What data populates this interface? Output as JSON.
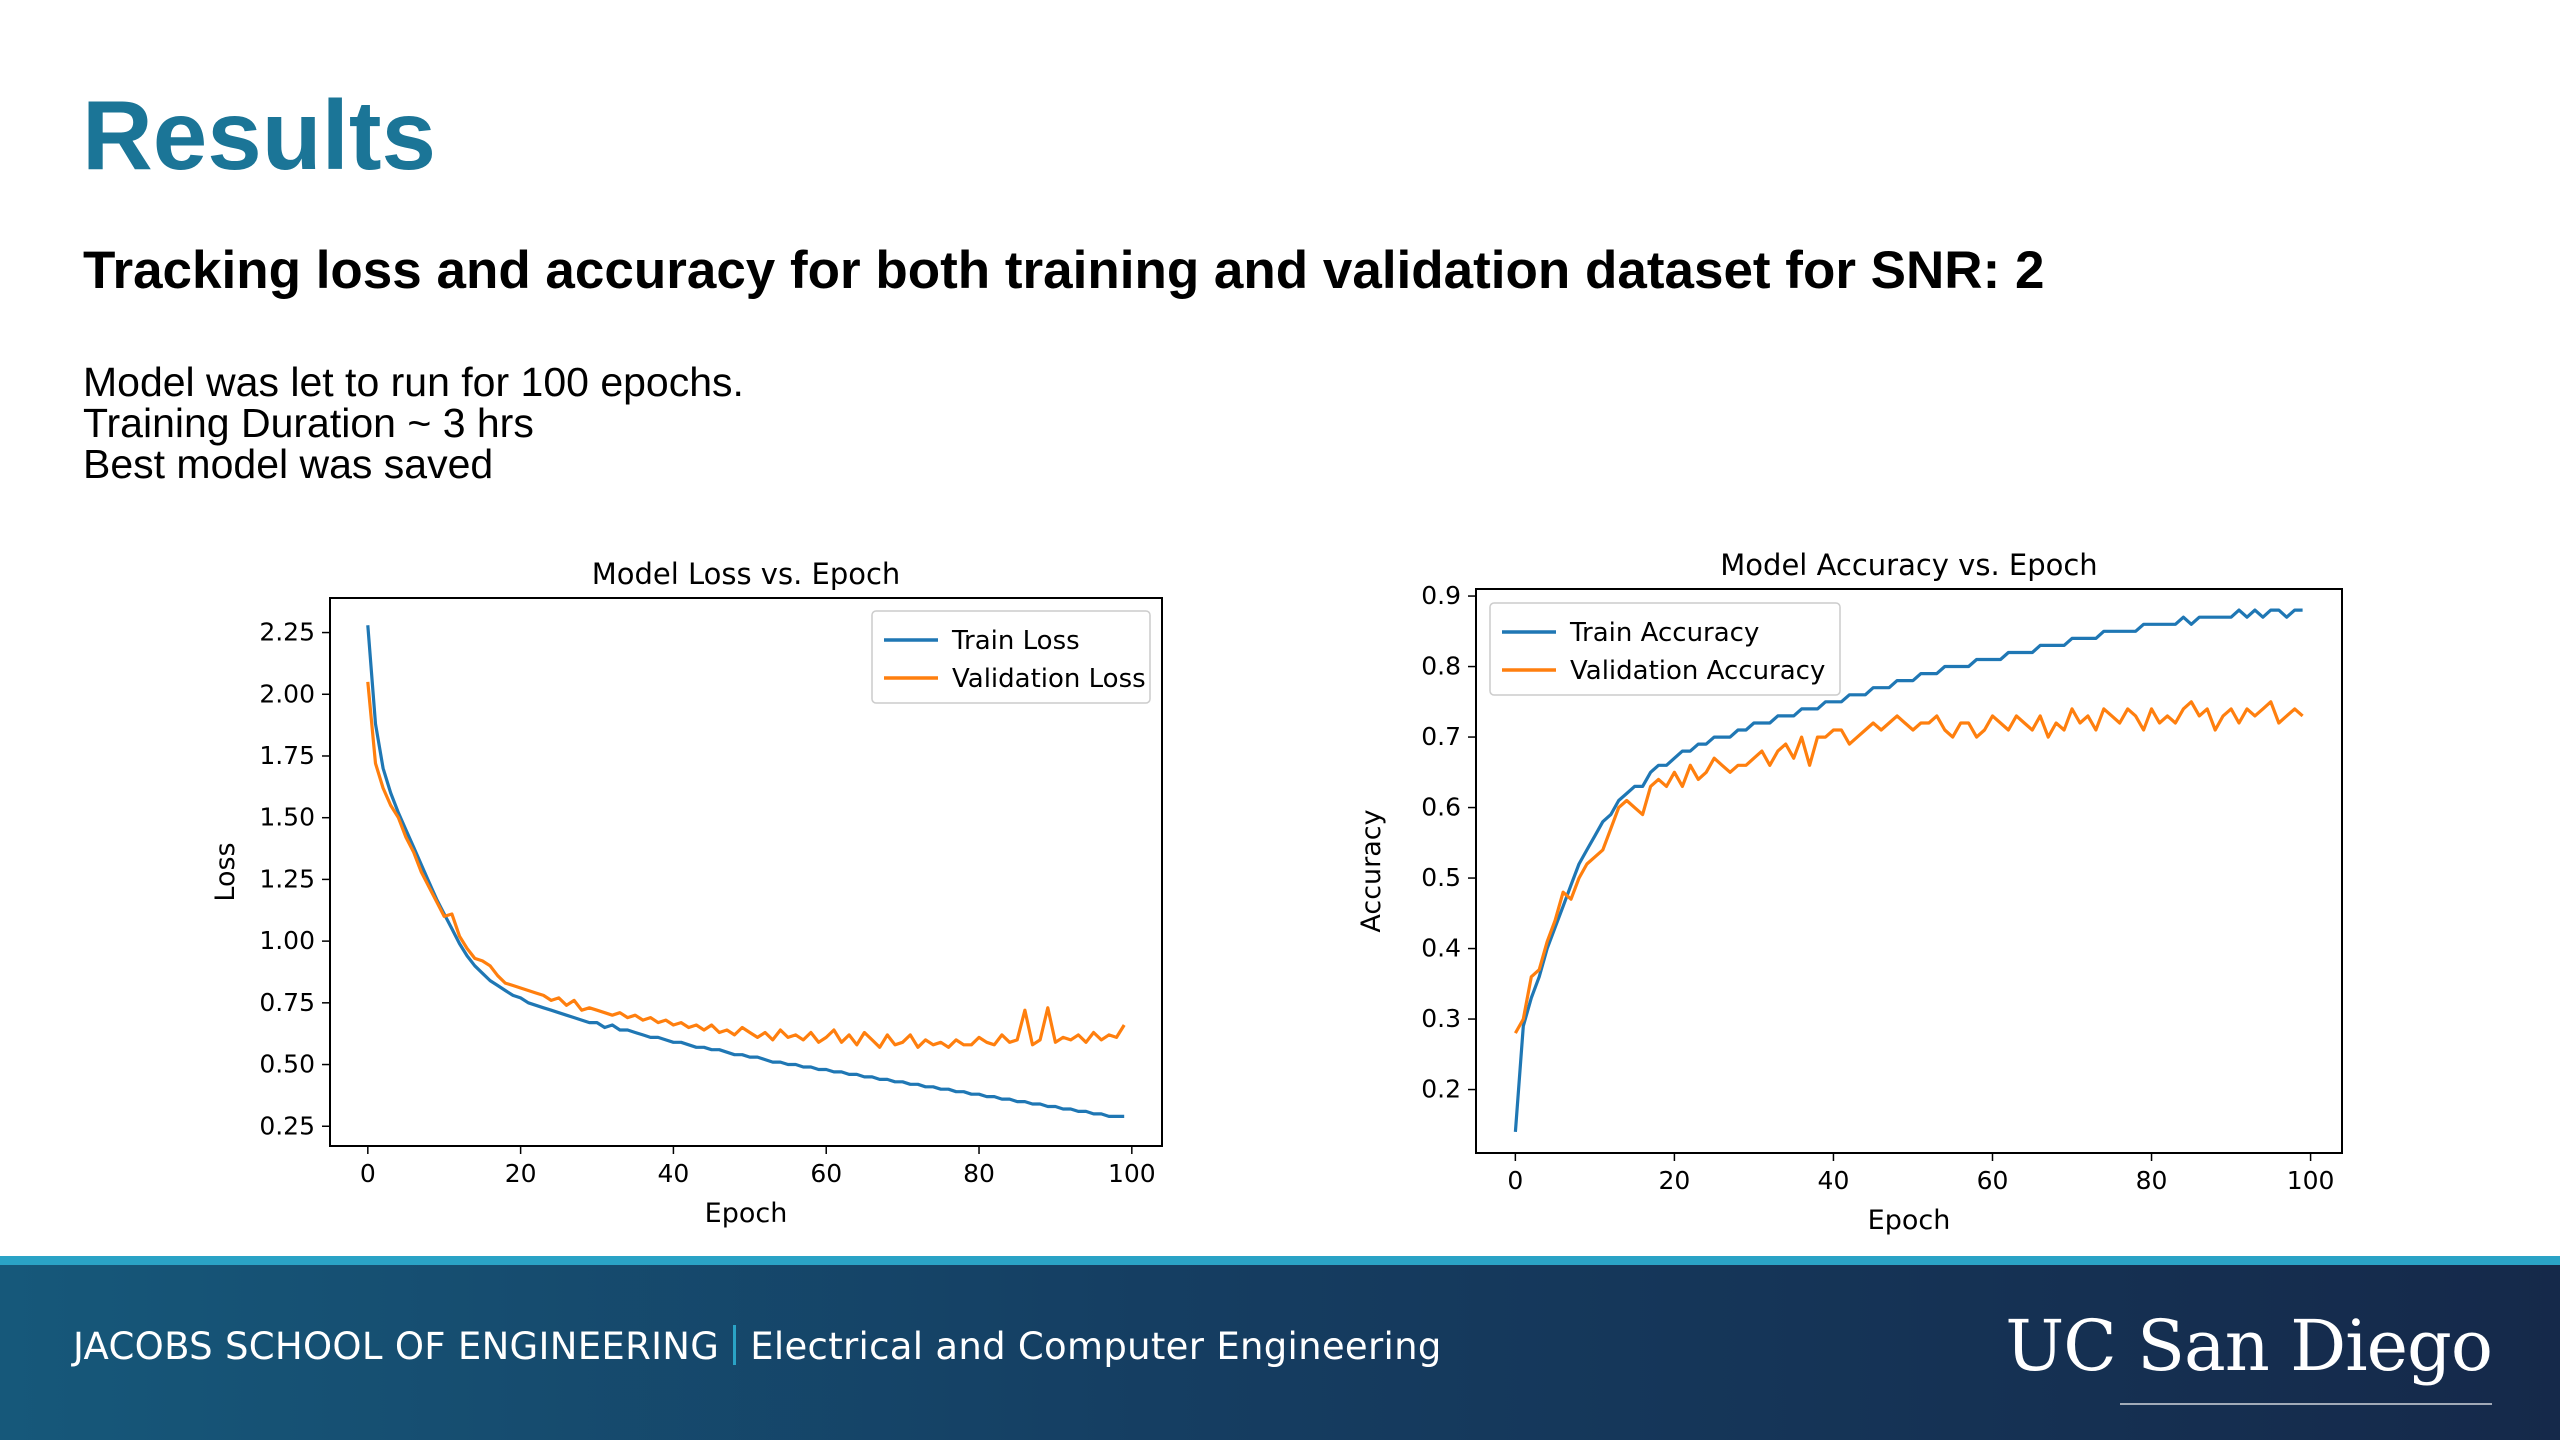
{
  "slide": {
    "title": "Results",
    "subtitle": "Tracking loss and accuracy for both training and validation dataset for SNR: 2",
    "body_lines": [
      "Model was let to run for 100 epochs.",
      "Training Duration ~ 3 hrs",
      "Best model was saved"
    ]
  },
  "footer": {
    "school": "JACOBS SCHOOL OF ENGINEERING",
    "department": "Electrical and Computer Engineering",
    "logo_text": "UC San Diego"
  },
  "colors": {
    "title": "#1b7597",
    "train_series": "#1f77b4",
    "validation_series": "#ff7f0e",
    "footer_accent": "#2aa3c6"
  },
  "chart_data": [
    {
      "type": "line",
      "title": "Model Loss vs. Epoch",
      "xlabel": "Epoch",
      "ylabel": "Loss",
      "xlim": [
        -4.95,
        103.95
      ],
      "ylim": [
        0.17,
        2.39
      ],
      "xticks": [
        0,
        20,
        40,
        60,
        80,
        100
      ],
      "yticks": [
        0.25,
        0.5,
        0.75,
        1.0,
        1.25,
        1.5,
        1.75,
        2.0,
        2.25
      ],
      "ytick_labels": [
        "0.25",
        "0.50",
        "0.75",
        "1.00",
        "1.25",
        "1.50",
        "1.75",
        "2.00",
        "2.25"
      ],
      "legend_position": "top-right",
      "series": [
        {
          "name": "Train Loss",
          "color": "#1f77b4",
          "x": [
            0,
            1,
            2,
            3,
            4,
            5,
            6,
            7,
            8,
            9,
            10,
            11,
            12,
            13,
            14,
            15,
            16,
            17,
            18,
            19,
            20,
            21,
            22,
            23,
            24,
            25,
            26,
            27,
            28,
            29,
            30,
            31,
            32,
            33,
            34,
            35,
            36,
            37,
            38,
            39,
            40,
            41,
            42,
            43,
            44,
            45,
            46,
            47,
            48,
            49,
            50,
            51,
            52,
            53,
            54,
            55,
            56,
            57,
            58,
            59,
            60,
            61,
            62,
            63,
            64,
            65,
            66,
            67,
            68,
            69,
            70,
            71,
            72,
            73,
            74,
            75,
            76,
            77,
            78,
            79,
            80,
            81,
            82,
            83,
            84,
            85,
            86,
            87,
            88,
            89,
            90,
            91,
            92,
            93,
            94,
            95,
            96,
            97,
            98,
            99
          ],
          "y": [
            2.28,
            1.88,
            1.7,
            1.6,
            1.52,
            1.45,
            1.38,
            1.31,
            1.24,
            1.17,
            1.11,
            1.05,
            0.99,
            0.94,
            0.9,
            0.87,
            0.84,
            0.82,
            0.8,
            0.78,
            0.77,
            0.75,
            0.74,
            0.73,
            0.72,
            0.71,
            0.7,
            0.69,
            0.68,
            0.67,
            0.67,
            0.65,
            0.66,
            0.64,
            0.64,
            0.63,
            0.62,
            0.61,
            0.61,
            0.6,
            0.59,
            0.59,
            0.58,
            0.57,
            0.57,
            0.56,
            0.56,
            0.55,
            0.54,
            0.54,
            0.53,
            0.53,
            0.52,
            0.51,
            0.51,
            0.5,
            0.5,
            0.49,
            0.49,
            0.48,
            0.48,
            0.47,
            0.47,
            0.46,
            0.46,
            0.45,
            0.45,
            0.44,
            0.44,
            0.43,
            0.43,
            0.42,
            0.42,
            0.41,
            0.41,
            0.4,
            0.4,
            0.39,
            0.39,
            0.38,
            0.38,
            0.37,
            0.37,
            0.36,
            0.36,
            0.35,
            0.35,
            0.34,
            0.34,
            0.33,
            0.33,
            0.32,
            0.32,
            0.31,
            0.31,
            0.3,
            0.3,
            0.29,
            0.29,
            0.29
          ]
        },
        {
          "name": "Validation Loss",
          "color": "#ff7f0e",
          "x": [
            0,
            1,
            2,
            3,
            4,
            5,
            6,
            7,
            8,
            9,
            10,
            11,
            12,
            13,
            14,
            15,
            16,
            17,
            18,
            19,
            20,
            21,
            22,
            23,
            24,
            25,
            26,
            27,
            28,
            29,
            30,
            31,
            32,
            33,
            34,
            35,
            36,
            37,
            38,
            39,
            40,
            41,
            42,
            43,
            44,
            45,
            46,
            47,
            48,
            49,
            50,
            51,
            52,
            53,
            54,
            55,
            56,
            57,
            58,
            59,
            60,
            61,
            62,
            63,
            64,
            65,
            66,
            67,
            68,
            69,
            70,
            71,
            72,
            73,
            74,
            75,
            76,
            77,
            78,
            79,
            80,
            81,
            82,
            83,
            84,
            85,
            86,
            87,
            88,
            89,
            90,
            91,
            92,
            93,
            94,
            95,
            96,
            97,
            98,
            99
          ],
          "y": [
            2.05,
            1.72,
            1.62,
            1.55,
            1.5,
            1.42,
            1.36,
            1.28,
            1.22,
            1.16,
            1.1,
            1.11,
            1.02,
            0.97,
            0.93,
            0.92,
            0.9,
            0.86,
            0.83,
            0.82,
            0.81,
            0.8,
            0.79,
            0.78,
            0.76,
            0.77,
            0.74,
            0.76,
            0.72,
            0.73,
            0.72,
            0.71,
            0.7,
            0.71,
            0.69,
            0.7,
            0.68,
            0.69,
            0.67,
            0.68,
            0.66,
            0.67,
            0.65,
            0.66,
            0.64,
            0.66,
            0.63,
            0.64,
            0.62,
            0.65,
            0.63,
            0.61,
            0.63,
            0.6,
            0.64,
            0.61,
            0.62,
            0.6,
            0.63,
            0.59,
            0.61,
            0.64,
            0.59,
            0.62,
            0.58,
            0.63,
            0.6,
            0.57,
            0.62,
            0.58,
            0.59,
            0.62,
            0.57,
            0.6,
            0.58,
            0.59,
            0.57,
            0.6,
            0.58,
            0.58,
            0.61,
            0.59,
            0.58,
            0.62,
            0.59,
            0.6,
            0.72,
            0.58,
            0.6,
            0.73,
            0.59,
            0.61,
            0.6,
            0.62,
            0.59,
            0.63,
            0.6,
            0.62,
            0.61,
            0.66
          ]
        }
      ]
    },
    {
      "type": "line",
      "title": "Model Accuracy vs. Epoch",
      "xlabel": "Epoch",
      "ylabel": "Accuracy",
      "xlim": [
        -4.95,
        103.95
      ],
      "ylim": [
        0.11,
        0.91
      ],
      "xticks": [
        0,
        20,
        40,
        60,
        80,
        100
      ],
      "yticks": [
        0.2,
        0.3,
        0.4,
        0.5,
        0.6,
        0.7,
        0.8,
        0.9
      ],
      "ytick_labels": [
        "0.2",
        "0.3",
        "0.4",
        "0.5",
        "0.6",
        "0.7",
        "0.8",
        "0.9"
      ],
      "legend_position": "top-left",
      "series": [
        {
          "name": "Train Accuracy",
          "color": "#1f77b4",
          "x": [
            0,
            1,
            2,
            3,
            4,
            5,
            6,
            7,
            8,
            9,
            10,
            11,
            12,
            13,
            14,
            15,
            16,
            17,
            18,
            19,
            20,
            21,
            22,
            23,
            24,
            25,
            26,
            27,
            28,
            29,
            30,
            31,
            32,
            33,
            34,
            35,
            36,
            37,
            38,
            39,
            40,
            41,
            42,
            43,
            44,
            45,
            46,
            47,
            48,
            49,
            50,
            51,
            52,
            53,
            54,
            55,
            56,
            57,
            58,
            59,
            60,
            61,
            62,
            63,
            64,
            65,
            66,
            67,
            68,
            69,
            70,
            71,
            72,
            73,
            74,
            75,
            76,
            77,
            78,
            79,
            80,
            81,
            82,
            83,
            84,
            85,
            86,
            87,
            88,
            89,
            90,
            91,
            92,
            93,
            94,
            95,
            96,
            97,
            98,
            99
          ],
          "y": [
            0.14,
            0.29,
            0.33,
            0.36,
            0.4,
            0.43,
            0.46,
            0.49,
            0.52,
            0.54,
            0.56,
            0.58,
            0.59,
            0.61,
            0.62,
            0.63,
            0.63,
            0.65,
            0.66,
            0.66,
            0.67,
            0.68,
            0.68,
            0.69,
            0.69,
            0.7,
            0.7,
            0.7,
            0.71,
            0.71,
            0.72,
            0.72,
            0.72,
            0.73,
            0.73,
            0.73,
            0.74,
            0.74,
            0.74,
            0.75,
            0.75,
            0.75,
            0.76,
            0.76,
            0.76,
            0.77,
            0.77,
            0.77,
            0.78,
            0.78,
            0.78,
            0.79,
            0.79,
            0.79,
            0.8,
            0.8,
            0.8,
            0.8,
            0.81,
            0.81,
            0.81,
            0.81,
            0.82,
            0.82,
            0.82,
            0.82,
            0.83,
            0.83,
            0.83,
            0.83,
            0.84,
            0.84,
            0.84,
            0.84,
            0.85,
            0.85,
            0.85,
            0.85,
            0.85,
            0.86,
            0.86,
            0.86,
            0.86,
            0.86,
            0.87,
            0.86,
            0.87,
            0.87,
            0.87,
            0.87,
            0.87,
            0.88,
            0.87,
            0.88,
            0.87,
            0.88,
            0.88,
            0.87,
            0.88,
            0.88
          ]
        },
        {
          "name": "Validation Accuracy",
          "color": "#ff7f0e",
          "x": [
            0,
            1,
            2,
            3,
            4,
            5,
            6,
            7,
            8,
            9,
            10,
            11,
            12,
            13,
            14,
            15,
            16,
            17,
            18,
            19,
            20,
            21,
            22,
            23,
            24,
            25,
            26,
            27,
            28,
            29,
            30,
            31,
            32,
            33,
            34,
            35,
            36,
            37,
            38,
            39,
            40,
            41,
            42,
            43,
            44,
            45,
            46,
            47,
            48,
            49,
            50,
            51,
            52,
            53,
            54,
            55,
            56,
            57,
            58,
            59,
            60,
            61,
            62,
            63,
            64,
            65,
            66,
            67,
            68,
            69,
            70,
            71,
            72,
            73,
            74,
            75,
            76,
            77,
            78,
            79,
            80,
            81,
            82,
            83,
            84,
            85,
            86,
            87,
            88,
            89,
            90,
            91,
            92,
            93,
            94,
            95,
            96,
            97,
            98,
            99
          ],
          "y": [
            0.28,
            0.3,
            0.36,
            0.37,
            0.41,
            0.44,
            0.48,
            0.47,
            0.5,
            0.52,
            0.53,
            0.54,
            0.57,
            0.6,
            0.61,
            0.6,
            0.59,
            0.63,
            0.64,
            0.63,
            0.65,
            0.63,
            0.66,
            0.64,
            0.65,
            0.67,
            0.66,
            0.65,
            0.66,
            0.66,
            0.67,
            0.68,
            0.66,
            0.68,
            0.69,
            0.67,
            0.7,
            0.66,
            0.7,
            0.7,
            0.71,
            0.71,
            0.69,
            0.7,
            0.71,
            0.72,
            0.71,
            0.72,
            0.73,
            0.72,
            0.71,
            0.72,
            0.72,
            0.73,
            0.71,
            0.7,
            0.72,
            0.72,
            0.7,
            0.71,
            0.73,
            0.72,
            0.71,
            0.73,
            0.72,
            0.71,
            0.73,
            0.7,
            0.72,
            0.71,
            0.74,
            0.72,
            0.73,
            0.71,
            0.74,
            0.73,
            0.72,
            0.74,
            0.73,
            0.71,
            0.74,
            0.72,
            0.73,
            0.72,
            0.74,
            0.75,
            0.73,
            0.74,
            0.71,
            0.73,
            0.74,
            0.72,
            0.74,
            0.73,
            0.74,
            0.75,
            0.72,
            0.73,
            0.74,
            0.73
          ]
        }
      ]
    }
  ]
}
